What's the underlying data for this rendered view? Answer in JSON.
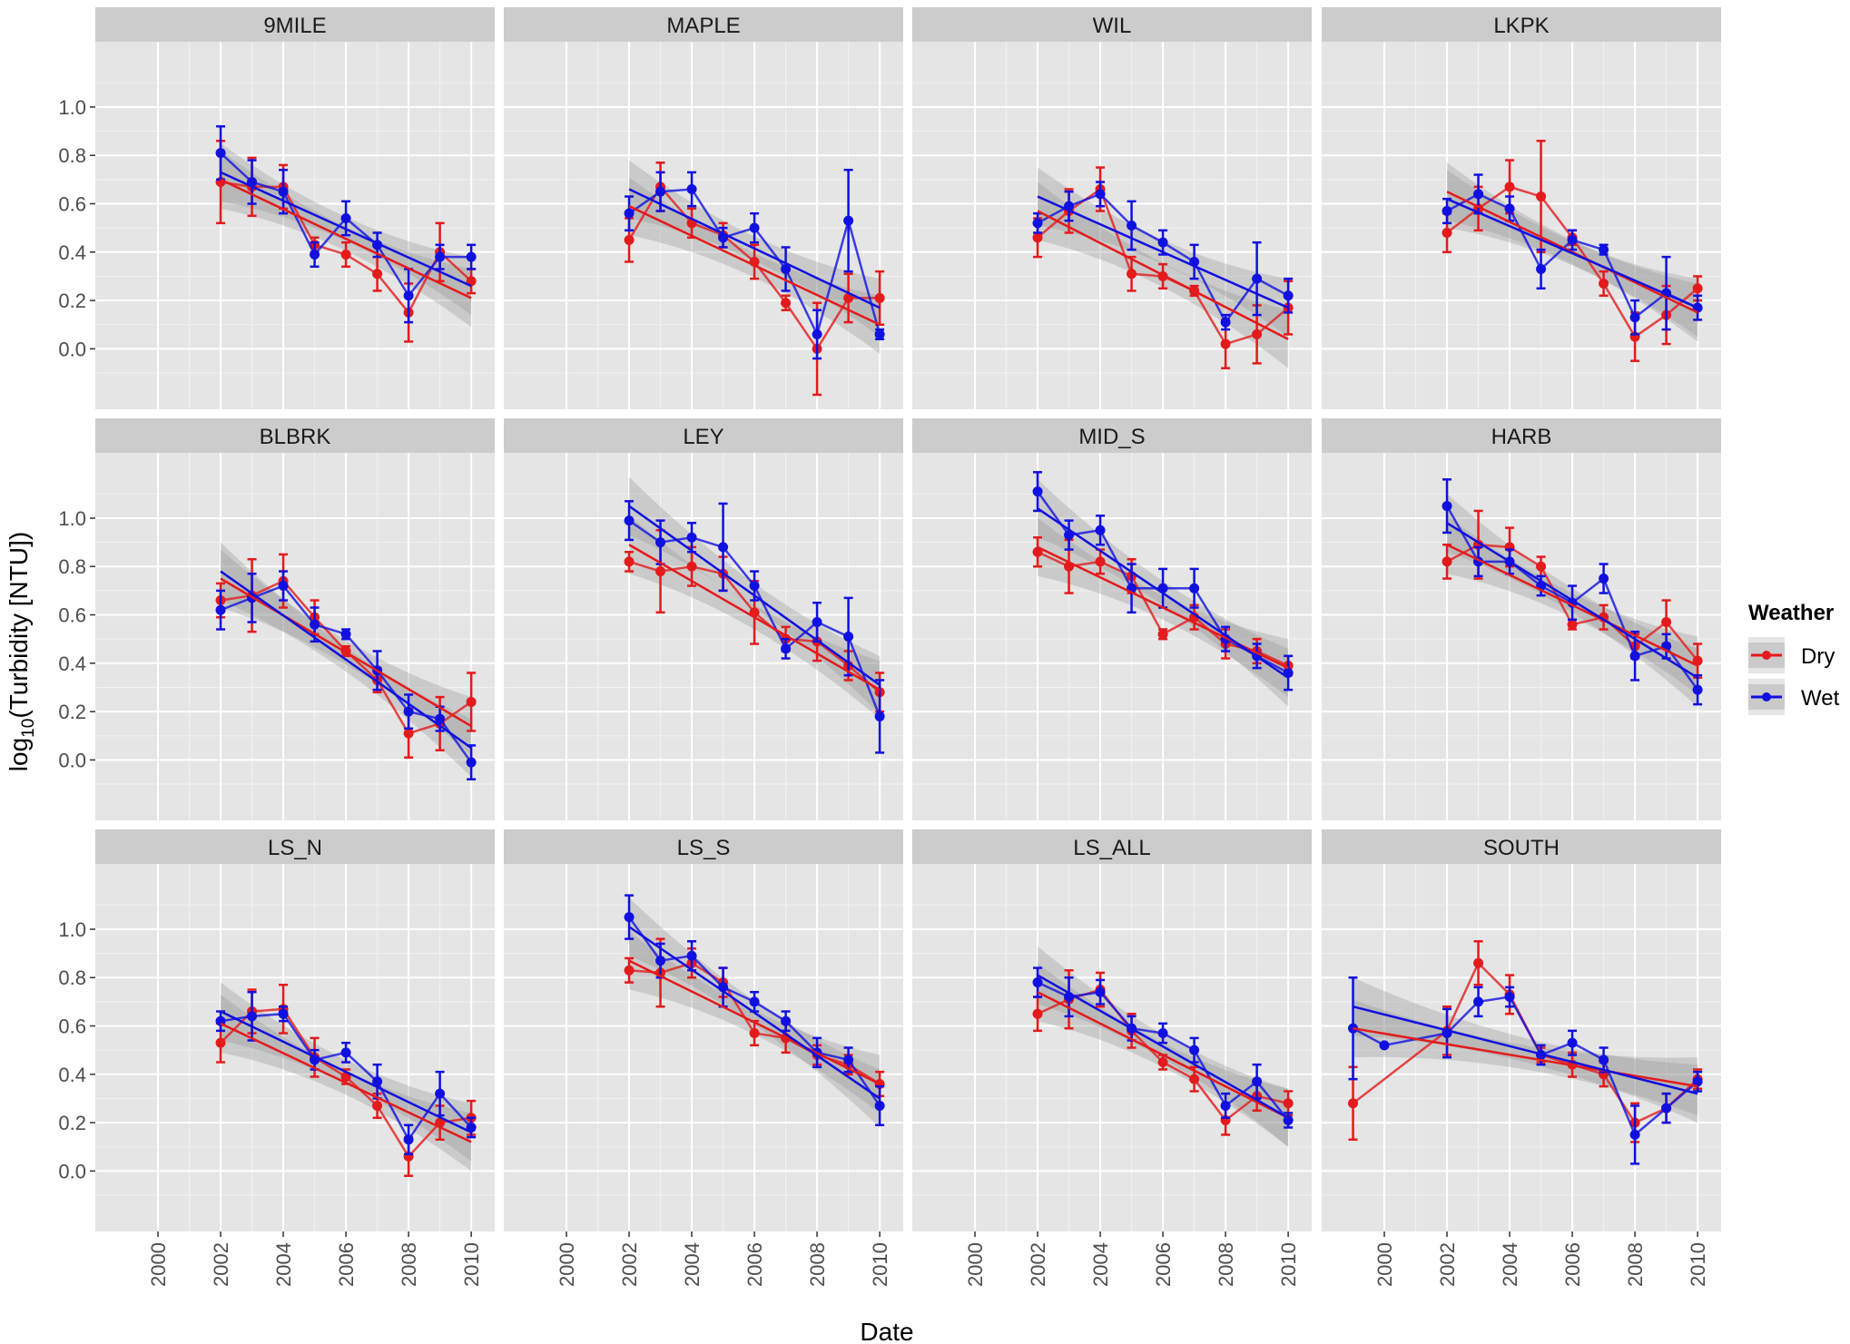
{
  "chart_data": {
    "type": "line",
    "xlabel": "Date",
    "ylabel_main": "log",
    "ylabel_sub": "10",
    "ylabel_rest": "(Turbidity [NTU])",
    "x_ticks": [
      2000,
      2002,
      2004,
      2006,
      2008,
      2010
    ],
    "y_ticks": [
      0.0,
      0.2,
      0.4,
      0.6,
      0.8,
      1.0
    ],
    "y_tick_labels": [
      "0.0",
      "0.2",
      "0.4",
      "0.6",
      "0.8",
      "1.0"
    ],
    "xlim": [
      1998.0,
      2010.75
    ],
    "ylim": [
      -0.25,
      1.27
    ],
    "grid": true,
    "legend": {
      "title": "Weather",
      "placement": "right",
      "entries": [
        {
          "name": "Dry",
          "color": "#e41a1c"
        },
        {
          "name": "Wet",
          "color": "#1010e0"
        }
      ]
    },
    "colors": {
      "Dry": "#e41a1c",
      "Wet": "#1010e0",
      "panel_bg": "#e5e5e5",
      "strip_bg": "#cccccc",
      "ribbon": "#999999"
    },
    "panels": [
      {
        "name": "9MILE",
        "x": [
          2002,
          2003,
          2004,
          2005,
          2006,
          2007,
          2008,
          2009,
          2010
        ],
        "dry": [
          0.69,
          0.67,
          0.67,
          0.43,
          0.39,
          0.31,
          0.15,
          0.4,
          0.28
        ],
        "dry_err": [
          0.17,
          0.12,
          0.09,
          0.03,
          0.05,
          0.07,
          0.12,
          0.12,
          0.05
        ],
        "wet": [
          0.81,
          0.69,
          0.65,
          0.39,
          0.54,
          0.43,
          0.22,
          0.38,
          0.38
        ],
        "wet_err": [
          0.11,
          0.09,
          0.09,
          0.05,
          0.07,
          0.05,
          0.11,
          0.05,
          0.05
        ],
        "dry_fit": [
          0.7,
          0.21
        ],
        "wet_fit": [
          0.73,
          0.26
        ]
      },
      {
        "name": "MAPLE",
        "x": [
          2002,
          2003,
          2004,
          2005,
          2006,
          2007,
          2008,
          2009,
          2010
        ],
        "dry": [
          0.45,
          0.67,
          0.52,
          0.47,
          0.36,
          0.19,
          0.0,
          0.21,
          0.21
        ],
        "dry_err": [
          0.09,
          0.1,
          0.06,
          0.05,
          0.07,
          0.03,
          0.19,
          0.1,
          0.11
        ],
        "wet": [
          0.56,
          0.65,
          0.66,
          0.46,
          0.5,
          0.33,
          0.06,
          0.53,
          0.06
        ],
        "wet_err": [
          0.07,
          0.08,
          0.07,
          0.04,
          0.06,
          0.09,
          0.1,
          0.21,
          0.02
        ],
        "dry_fit": [
          0.59,
          0.1
        ],
        "wet_fit": [
          0.66,
          0.17
        ]
      },
      {
        "name": "WIL",
        "x": [
          2002,
          2003,
          2004,
          2005,
          2006,
          2007,
          2008,
          2009,
          2010
        ],
        "dry": [
          0.46,
          0.57,
          0.66,
          0.31,
          0.3,
          0.24,
          0.02,
          0.06,
          0.17
        ],
        "dry_err": [
          0.08,
          0.09,
          0.09,
          0.07,
          0.05,
          0.02,
          0.1,
          0.12,
          0.11
        ],
        "wet": [
          0.52,
          0.59,
          0.64,
          0.51,
          0.44,
          0.36,
          0.11,
          0.29,
          0.22
        ],
        "wet_err": [
          0.04,
          0.06,
          0.05,
          0.1,
          0.05,
          0.07,
          0.03,
          0.15,
          0.07
        ],
        "dry_fit": [
          0.57,
          0.04
        ],
        "wet_fit": [
          0.63,
          0.17
        ]
      },
      {
        "name": "LKPK",
        "x": [
          2002,
          2003,
          2004,
          2005,
          2006,
          2007,
          2008,
          2009,
          2010
        ],
        "dry": [
          0.48,
          0.58,
          0.67,
          0.63,
          0.46,
          0.27,
          0.05,
          0.14,
          0.25
        ],
        "dry_err": [
          0.08,
          0.09,
          0.11,
          0.23,
          0.03,
          0.05,
          0.1,
          0.12,
          0.05
        ],
        "wet": [
          0.57,
          0.64,
          0.58,
          0.33,
          0.45,
          0.41,
          0.13,
          0.23,
          0.17
        ],
        "wet_err": [
          0.05,
          0.08,
          0.05,
          0.08,
          0.04,
          0.02,
          0.07,
          0.15,
          0.05
        ],
        "dry_fit": [
          0.65,
          0.15
        ],
        "wet_fit": [
          0.62,
          0.17
        ]
      },
      {
        "name": "BLBRK",
        "x": [
          2002,
          2003,
          2004,
          2005,
          2006,
          2007,
          2008,
          2009,
          2010
        ],
        "dry": [
          0.66,
          0.68,
          0.74,
          0.59,
          0.45,
          0.33,
          0.11,
          0.15,
          0.24
        ],
        "dry_err": [
          0.07,
          0.15,
          0.11,
          0.07,
          0.02,
          0.05,
          0.1,
          0.11,
          0.12
        ],
        "wet": [
          0.62,
          0.67,
          0.72,
          0.56,
          0.52,
          0.37,
          0.2,
          0.17,
          -0.01
        ],
        "wet_err": [
          0.08,
          0.1,
          0.06,
          0.07,
          0.02,
          0.08,
          0.07,
          0.05,
          0.07
        ],
        "dry_fit": [
          0.75,
          0.14
        ],
        "wet_fit": [
          0.78,
          0.05
        ]
      },
      {
        "name": "LEY",
        "x": [
          2002,
          2003,
          2004,
          2005,
          2006,
          2007,
          2008,
          2009,
          2010
        ],
        "dry": [
          0.82,
          0.78,
          0.8,
          0.77,
          0.61,
          0.5,
          0.49,
          0.39,
          0.28
        ],
        "dry_err": [
          0.04,
          0.17,
          0.08,
          0.07,
          0.13,
          0.05,
          0.08,
          0.06,
          0.08
        ],
        "wet": [
          0.99,
          0.9,
          0.92,
          0.88,
          0.72,
          0.46,
          0.57,
          0.51,
          0.18
        ],
        "wet_err": [
          0.08,
          0.09,
          0.06,
          0.18,
          0.06,
          0.04,
          0.08,
          0.16,
          0.15
        ],
        "dry_fit": [
          0.89,
          0.29
        ],
        "wet_fit": [
          1.05,
          0.31
        ]
      },
      {
        "name": "MID_S",
        "x": [
          2002,
          2003,
          2004,
          2005,
          2006,
          2007,
          2008,
          2009,
          2010
        ],
        "dry": [
          0.86,
          0.8,
          0.82,
          0.76,
          0.52,
          0.59,
          0.48,
          0.45,
          0.39
        ],
        "dry_err": [
          0.06,
          0.11,
          0.05,
          0.07,
          0.02,
          0.05,
          0.06,
          0.05,
          0.04
        ],
        "wet": [
          1.11,
          0.93,
          0.95,
          0.71,
          0.71,
          0.71,
          0.5,
          0.43,
          0.36
        ],
        "wet_err": [
          0.08,
          0.06,
          0.06,
          0.1,
          0.08,
          0.08,
          0.05,
          0.05,
          0.07
        ],
        "dry_fit": [
          0.88,
          0.38
        ],
        "wet_fit": [
          1.04,
          0.34
        ]
      },
      {
        "name": "HARB",
        "x": [
          2002,
          2003,
          2004,
          2005,
          2006,
          2007,
          2008,
          2009,
          2010
        ],
        "dry": [
          0.82,
          0.89,
          0.88,
          0.8,
          0.56,
          0.59,
          0.47,
          0.57,
          0.41
        ],
        "dry_err": [
          0.07,
          0.14,
          0.08,
          0.04,
          0.02,
          0.05,
          0.05,
          0.09,
          0.07
        ],
        "wet": [
          1.05,
          0.82,
          0.82,
          0.72,
          0.65,
          0.75,
          0.43,
          0.47,
          0.29
        ],
        "wet_err": [
          0.11,
          0.06,
          0.05,
          0.04,
          0.07,
          0.06,
          0.1,
          0.05,
          0.06
        ],
        "dry_fit": [
          0.89,
          0.39
        ],
        "wet_fit": [
          0.98,
          0.34
        ]
      },
      {
        "name": "LS_N",
        "x": [
          2002,
          2003,
          2004,
          2005,
          2006,
          2007,
          2008,
          2009,
          2010
        ],
        "dry": [
          0.53,
          0.66,
          0.67,
          0.47,
          0.39,
          0.27,
          0.06,
          0.2,
          0.22
        ],
        "dry_err": [
          0.08,
          0.09,
          0.1,
          0.08,
          0.03,
          0.05,
          0.08,
          0.07,
          0.07
        ],
        "wet": [
          0.62,
          0.64,
          0.65,
          0.46,
          0.49,
          0.37,
          0.13,
          0.32,
          0.18
        ],
        "wet_err": [
          0.04,
          0.1,
          0.03,
          0.04,
          0.04,
          0.07,
          0.06,
          0.09,
          0.04
        ],
        "dry_fit": [
          0.61,
          0.12
        ],
        "wet_fit": [
          0.66,
          0.16
        ]
      },
      {
        "name": "LS_S",
        "x": [
          2002,
          2003,
          2004,
          2005,
          2006,
          2007,
          2008,
          2009,
          2010
        ],
        "dry": [
          0.83,
          0.82,
          0.86,
          0.78,
          0.57,
          0.55,
          0.48,
          0.44,
          0.36
        ],
        "dry_err": [
          0.05,
          0.14,
          0.06,
          0.06,
          0.05,
          0.06,
          0.04,
          0.04,
          0.05
        ],
        "wet": [
          1.05,
          0.87,
          0.89,
          0.76,
          0.7,
          0.62,
          0.49,
          0.46,
          0.27
        ],
        "wet_err": [
          0.09,
          0.07,
          0.06,
          0.08,
          0.04,
          0.04,
          0.06,
          0.05,
          0.08
        ],
        "dry_fit": [
          0.87,
          0.36
        ],
        "wet_fit": [
          1.01,
          0.3
        ]
      },
      {
        "name": "LS_ALL",
        "x": [
          2002,
          2003,
          2004,
          2005,
          2006,
          2007,
          2008,
          2009,
          2010
        ],
        "dry": [
          0.65,
          0.71,
          0.75,
          0.58,
          0.45,
          0.38,
          0.21,
          0.31,
          0.28
        ],
        "dry_err": [
          0.07,
          0.12,
          0.07,
          0.07,
          0.03,
          0.05,
          0.06,
          0.06,
          0.05
        ],
        "wet": [
          0.78,
          0.72,
          0.74,
          0.59,
          0.57,
          0.5,
          0.27,
          0.37,
          0.21
        ],
        "wet_err": [
          0.06,
          0.08,
          0.05,
          0.05,
          0.04,
          0.05,
          0.05,
          0.07,
          0.03
        ],
        "dry_fit": [
          0.74,
          0.22
        ],
        "wet_fit": [
          0.81,
          0.22
        ]
      },
      {
        "name": "SOUTH",
        "x": [
          1999,
          2000,
          2002,
          2003,
          2004,
          2005,
          2006,
          2007,
          2008,
          2009,
          2010
        ],
        "dry": [
          0.28,
          null,
          0.58,
          0.86,
          0.73,
          0.48,
          0.44,
          0.4,
          0.2,
          0.26,
          0.38
        ],
        "dry_err": [
          0.15,
          null,
          0.1,
          0.09,
          0.08,
          0.03,
          0.05,
          0.05,
          0.08,
          0.06,
          0.04
        ],
        "wet": [
          0.59,
          0.52,
          0.57,
          0.7,
          0.72,
          0.48,
          0.53,
          0.46,
          0.15,
          0.26,
          0.37
        ],
        "wet_err": [
          0.21,
          null,
          0.1,
          0.06,
          0.04,
          0.04,
          0.05,
          0.05,
          0.12,
          0.06,
          0.04
        ],
        "dry_fit": [
          0.59,
          0.35
        ],
        "wet_fit": [
          0.68,
          0.32
        ],
        "fit_x0": 1999
      }
    ]
  }
}
